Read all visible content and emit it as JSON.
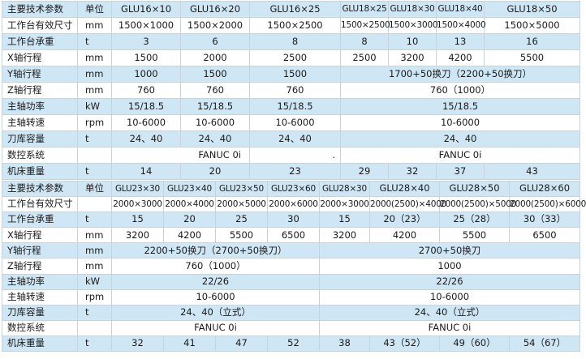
{
  "table1": {
    "header": [
      "主要技术参数",
      "单位",
      "GLU16×10",
      "GLU16×20",
      "GLU16×25",
      "GLU18×25",
      "GLU18×30",
      "GLU18×40",
      "GLU18×50"
    ],
    "rows": {
      "size": [
        "工作台有效尺寸",
        "mm",
        "1500×1000",
        "1500×2000",
        "1500×2500",
        "1500×2500",
        "1500×3000",
        "1500×4000",
        "1500×5000"
      ],
      "load": [
        "工作台承重",
        "t",
        "3",
        "6",
        "8",
        "8",
        "10",
        "13",
        "16"
      ],
      "x": [
        "X轴行程",
        "mm",
        "1500",
        "2000",
        "2500",
        "2500",
        "3200",
        "4200",
        "5500"
      ],
      "y": [
        "Y轴行程",
        "mm",
        "1000",
        "1500",
        "1500",
        "1700+50换刀（2200+50换刀）"
      ],
      "z": [
        "Z轴行程",
        "mm",
        "760",
        "760",
        "760",
        "760（1000）"
      ],
      "power": [
        "主轴功率",
        "kW",
        "15/18.5",
        "15/18.5",
        "15/18.5",
        "15/18.5"
      ],
      "speed": [
        "主轴转速",
        "rpm",
        "10-6000",
        "10-6000",
        "10-6000",
        "10-6000"
      ],
      "tools": [
        "刀库容量",
        "t",
        "24、40",
        "24、40",
        "24、40",
        "24、40"
      ],
      "cnc": [
        "数控系统",
        "",
        "FANUC 0i",
        ".",
        "FANUC 0i"
      ],
      "weight": [
        "机床重量",
        "t",
        "14",
        "20",
        "23",
        "29",
        "32",
        "37",
        "43"
      ]
    }
  },
  "table2": {
    "header": [
      "主要技术参数",
      "单位",
      "GLU23×30",
      "GLU23×40",
      "GLU23×50",
      "GLU23×60",
      "GLU28×30",
      "GLU28×40",
      "GLU28×50",
      "GLU28×60"
    ],
    "rows": {
      "size": [
        "工作台有效尺寸",
        "",
        "2000×3000",
        "2000×4000",
        "2000×5000",
        "2000×6000",
        "2000×3000",
        "2000(2500)×4000",
        "2000(2500)×5000",
        "2000(2500)×6000"
      ],
      "load": [
        "工作台承重",
        "t",
        "15",
        "20",
        "25",
        "30",
        "15",
        "20（23）",
        "25（28）",
        "30（33）"
      ],
      "x": [
        "X轴行程",
        "mm",
        "3200",
        "4200",
        "5500",
        "6500",
        "3200",
        "4200",
        "5500",
        "6500"
      ],
      "y": [
        "Y轴行程",
        "mm",
        "2200+50换刀（2700+50换刀）",
        "2700+50换刀"
      ],
      "z": [
        "Z轴行程",
        "mm",
        "760（1000）",
        "1000"
      ],
      "power": [
        "主轴功率",
        "kW",
        "22/26",
        "22/26"
      ],
      "speed": [
        "主轴转速",
        "rpm",
        "10-6000",
        "10-6000"
      ],
      "tools": [
        "刀库容量",
        "t",
        "24、40（立式）",
        "24、40（立式）"
      ],
      "cnc": [
        "数控系统",
        "",
        "FANUC 0i",
        "FANUC 0i"
      ],
      "weight": [
        "机床重量",
        "t",
        "32",
        "41",
        "47",
        "52",
        "38",
        "43（52）",
        "49（60）",
        "54（67）"
      ]
    }
  }
}
